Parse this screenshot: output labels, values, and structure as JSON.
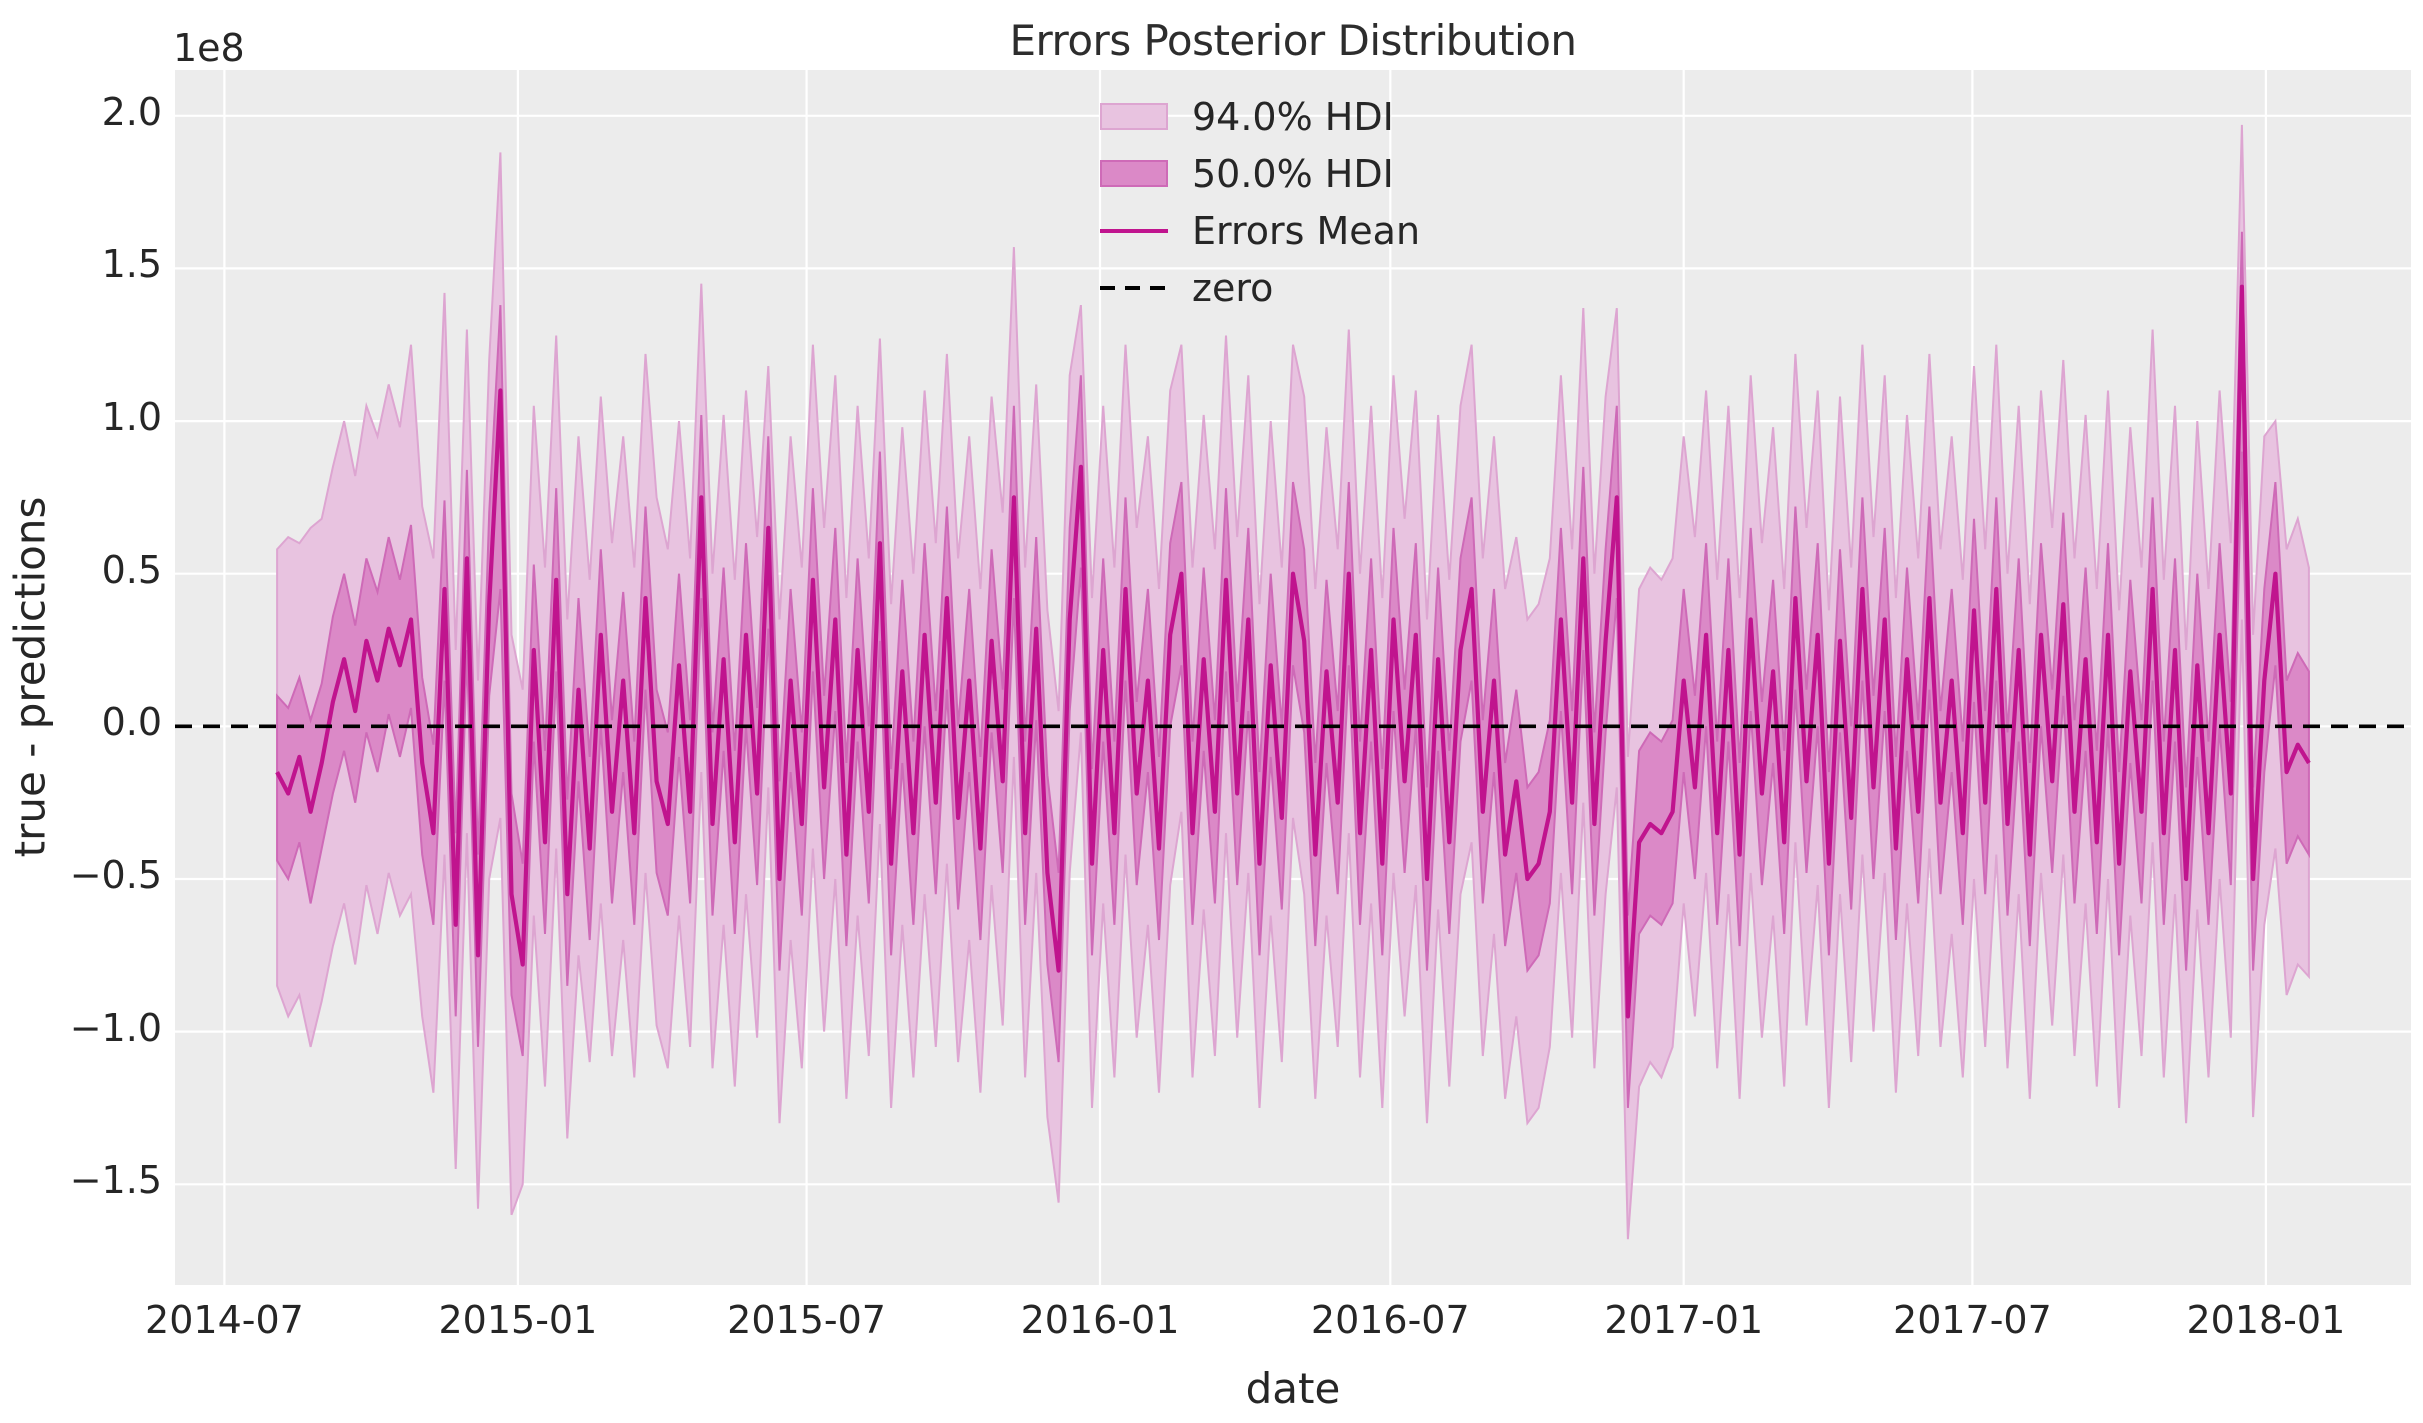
{
  "title": "Errors Posterior Distribution",
  "offset_text": "1e8",
  "xlabel": "date",
  "ylabel": "true - predictions",
  "legend": {
    "hdi94_label": "94.0% HDI",
    "hdi50_label": "50.0% HDI",
    "mean_label": "Errors Mean",
    "zero_label": "zero"
  },
  "colors": {
    "plot_background": "#ECECEC",
    "gridline": "#FFFFFF",
    "hdi94_fill": "#E8C3E0",
    "hdi94_edge": "#DDA5D1",
    "hdi50_fill": "#DB89C7",
    "hdi50_edge": "#CE6AB7",
    "mean_line": "#C0148E",
    "zero_line": "#000000",
    "text": "#262626"
  },
  "chart_data": {
    "type": "line",
    "title": "Errors Posterior Distribution",
    "xlabel": "date",
    "ylabel": "true - predictions",
    "y_scale_factor": "1e8",
    "legend_position": "upper center",
    "grid": true,
    "x_start_date": "2014-08-03",
    "x_freq_days": 7,
    "x_start_day": 64,
    "xlim_dates": [
      "2014-05-31",
      "2018-04-02"
    ],
    "xlim_total_days": 1402,
    "ylim": [
      -1.83,
      2.15
    ],
    "xticks": [
      {
        "label": "2014-07",
        "day": 31
      },
      {
        "label": "2015-01",
        "day": 215
      },
      {
        "label": "2015-07",
        "day": 396
      },
      {
        "label": "2016-01",
        "day": 580
      },
      {
        "label": "2016-07",
        "day": 762
      },
      {
        "label": "2017-01",
        "day": 946
      },
      {
        "label": "2017-07",
        "day": 1127
      },
      {
        "label": "2018-01",
        "day": 1311
      }
    ],
    "yticks": [
      {
        "label": "2.0",
        "value": 2.0
      },
      {
        "label": "1.5",
        "value": 1.5
      },
      {
        "label": "1.0",
        "value": 1.0
      },
      {
        "label": "0.5",
        "value": 0.5
      },
      {
        "label": "0.0",
        "value": 0.0
      },
      {
        "label": "−0.5",
        "value": -0.5
      },
      {
        "label": "−1.0",
        "value": -1.0
      },
      {
        "label": "−1.5",
        "value": -1.5
      }
    ],
    "zero_reference": 0.0,
    "series": {
      "mean": [
        -0.15,
        -0.22,
        -0.1,
        -0.28,
        -0.12,
        0.08,
        0.22,
        0.05,
        0.28,
        0.15,
        0.32,
        0.2,
        0.35,
        -0.12,
        -0.35,
        0.45,
        -0.65,
        0.55,
        -0.75,
        0.4,
        1.1,
        -0.55,
        -0.78,
        0.25,
        -0.38,
        0.48,
        -0.55,
        0.12,
        -0.4,
        0.3,
        -0.28,
        0.15,
        -0.35,
        0.42,
        -0.18,
        -0.32,
        0.2,
        -0.28,
        0.75,
        -0.32,
        0.22,
        -0.38,
        0.3,
        -0.22,
        0.65,
        -0.5,
        0.15,
        -0.32,
        0.48,
        -0.2,
        0.35,
        -0.42,
        0.25,
        -0.28,
        0.6,
        -0.45,
        0.18,
        -0.35,
        0.3,
        -0.25,
        0.42,
        -0.3,
        0.15,
        -0.4,
        0.28,
        -0.18,
        0.75,
        -0.35,
        0.32,
        -0.48,
        -0.8,
        0.35,
        0.85,
        -0.45,
        0.25,
        -0.35,
        0.45,
        -0.22,
        0.15,
        -0.4,
        0.3,
        0.5,
        -0.35,
        0.22,
        -0.28,
        0.48,
        -0.22,
        0.35,
        -0.45,
        0.2,
        -0.3,
        0.5,
        0.28,
        -0.42,
        0.18,
        -0.25,
        0.5,
        -0.35,
        0.25,
        -0.45,
        0.35,
        -0.18,
        0.3,
        -0.5,
        0.22,
        -0.38,
        0.25,
        0.45,
        -0.28,
        0.15,
        -0.42,
        -0.18,
        -0.5,
        -0.45,
        -0.28,
        0.35,
        -0.25,
        0.55,
        -0.32,
        0.28,
        0.75,
        -0.95,
        -0.38,
        -0.32,
        -0.35,
        -0.28,
        0.15,
        -0.2,
        0.3,
        -0.35,
        0.25,
        -0.42,
        0.35,
        -0.22,
        0.18,
        -0.38,
        0.42,
        -0.18,
        0.3,
        -0.45,
        0.28,
        -0.3,
        0.45,
        -0.2,
        0.35,
        -0.4,
        0.22,
        -0.28,
        0.42,
        -0.25,
        0.15,
        -0.35,
        0.38,
        -0.25,
        0.45,
        -0.32,
        0.25,
        -0.42,
        0.3,
        -0.18,
        0.4,
        -0.28,
        0.22,
        -0.38,
        0.3,
        -0.45,
        0.18,
        -0.28,
        0.45,
        -0.35,
        0.25,
        -0.5,
        0.2,
        -0.35,
        0.3,
        -0.22,
        1.44,
        -0.5,
        0.15,
        0.5,
        -0.15,
        -0.06,
        -0.12
      ],
      "hdi50_upper": [
        0.1,
        0.06,
        0.16,
        0.02,
        0.14,
        0.36,
        0.5,
        0.33,
        0.55,
        0.44,
        0.62,
        0.48,
        0.66,
        0.16,
        -0.06,
        0.74,
        -0.35,
        0.84,
        -0.42,
        0.7,
        1.38,
        -0.22,
        -0.45,
        0.53,
        -0.08,
        0.78,
        -0.24,
        0.42,
        -0.1,
        0.58,
        0.02,
        0.44,
        -0.05,
        0.72,
        0.12,
        -0.02,
        0.5,
        0.02,
        1.02,
        -0.02,
        0.52,
        -0.08,
        0.6,
        0.06,
        0.95,
        -0.18,
        0.45,
        -0.02,
        0.78,
        0.1,
        0.65,
        -0.12,
        0.55,
        0.0,
        0.9,
        -0.14,
        0.48,
        -0.05,
        0.6,
        0.05,
        0.72,
        0.0,
        0.45,
        -0.1,
        0.58,
        0.12,
        1.05,
        -0.05,
        0.62,
        -0.16,
        -0.48,
        0.65,
        1.15,
        -0.14,
        0.55,
        -0.05,
        0.75,
        0.08,
        0.45,
        -0.1,
        0.6,
        0.8,
        -0.05,
        0.52,
        0.02,
        0.78,
        0.08,
        0.65,
        -0.15,
        0.5,
        0.0,
        0.8,
        0.58,
        -0.12,
        0.48,
        0.05,
        0.8,
        -0.05,
        0.55,
        -0.14,
        0.65,
        0.12,
        0.6,
        -0.2,
        0.52,
        -0.08,
        0.55,
        0.75,
        0.02,
        0.45,
        -0.12,
        0.12,
        -0.2,
        -0.15,
        0.02,
        0.65,
        0.05,
        0.85,
        -0.02,
        0.58,
        1.05,
        -0.62,
        -0.08,
        -0.02,
        -0.05,
        0.02,
        0.45,
        0.1,
        0.6,
        -0.05,
        0.55,
        -0.12,
        0.65,
        0.08,
        0.48,
        -0.08,
        0.72,
        0.12,
        0.6,
        -0.15,
        0.58,
        0.0,
        0.75,
        0.1,
        0.65,
        -0.1,
        0.52,
        0.02,
        0.72,
        0.05,
        0.45,
        -0.05,
        0.68,
        0.05,
        0.75,
        -0.02,
        0.55,
        -0.12,
        0.6,
        0.12,
        0.7,
        0.02,
        0.52,
        -0.08,
        0.6,
        -0.15,
        0.48,
        0.02,
        0.75,
        -0.05,
        0.55,
        -0.2,
        0.5,
        -0.05,
        0.6,
        0.08,
        1.62,
        -0.2,
        0.45,
        0.8,
        0.15,
        0.24,
        0.18
      ],
      "hdi50_lower": [
        -0.44,
        -0.5,
        -0.38,
        -0.58,
        -0.4,
        -0.22,
        -0.08,
        -0.25,
        -0.02,
        -0.15,
        0.04,
        -0.1,
        0.06,
        -0.42,
        -0.65,
        0.15,
        -0.95,
        0.25,
        -1.05,
        0.1,
        0.45,
        -0.88,
        -1.08,
        -0.05,
        -0.68,
        0.18,
        -0.85,
        -0.18,
        -0.7,
        0.0,
        -0.58,
        -0.15,
        -0.65,
        0.12,
        -0.48,
        -0.62,
        -0.1,
        -0.58,
        0.42,
        -0.62,
        -0.08,
        -0.68,
        0.0,
        -0.52,
        0.32,
        -0.8,
        -0.15,
        -0.62,
        0.18,
        -0.5,
        0.05,
        -0.72,
        -0.05,
        -0.58,
        0.28,
        -0.75,
        -0.12,
        -0.65,
        0.0,
        -0.55,
        0.12,
        -0.6,
        -0.15,
        -0.7,
        -0.02,
        -0.48,
        0.42,
        -0.65,
        0.02,
        -0.78,
        -1.1,
        0.05,
        0.52,
        -0.75,
        -0.05,
        -0.65,
        0.15,
        -0.52,
        -0.15,
        -0.7,
        0.0,
        0.2,
        -0.65,
        -0.08,
        -0.58,
        0.18,
        -0.52,
        0.05,
        -0.75,
        -0.1,
        -0.6,
        0.2,
        -0.02,
        -0.72,
        -0.12,
        -0.55,
        0.2,
        -0.65,
        -0.05,
        -0.75,
        0.05,
        -0.48,
        0.0,
        -0.8,
        -0.08,
        -0.68,
        -0.05,
        0.15,
        -0.58,
        -0.15,
        -0.72,
        -0.48,
        -0.8,
        -0.75,
        -0.58,
        0.05,
        -0.55,
        0.25,
        -0.62,
        -0.02,
        0.42,
        -1.25,
        -0.68,
        -0.62,
        -0.65,
        -0.58,
        -0.15,
        -0.5,
        0.0,
        -0.65,
        -0.05,
        -0.72,
        0.05,
        -0.52,
        -0.12,
        -0.68,
        0.12,
        -0.48,
        0.0,
        -0.75,
        -0.02,
        -0.6,
        0.15,
        -0.5,
        0.05,
        -0.7,
        -0.08,
        -0.58,
        0.12,
        -0.55,
        -0.15,
        -0.65,
        0.08,
        -0.55,
        0.15,
        -0.62,
        -0.05,
        -0.72,
        0.0,
        -0.48,
        0.1,
        -0.58,
        -0.08,
        -0.68,
        0.0,
        -0.75,
        -0.12,
        -0.58,
        0.15,
        -0.65,
        -0.05,
        -0.8,
        -0.1,
        -0.65,
        0.0,
        -0.52,
        0.9,
        -0.8,
        -0.15,
        0.2,
        -0.45,
        -0.36,
        -0.42
      ],
      "hdi94_upper": [
        0.58,
        0.62,
        0.6,
        0.65,
        0.68,
        0.85,
        1.0,
        0.82,
        1.05,
        0.95,
        1.12,
        0.98,
        1.25,
        0.72,
        0.55,
        1.42,
        0.25,
        1.3,
        0.15,
        1.2,
        1.88,
        0.3,
        0.12,
        1.05,
        0.52,
        1.28,
        0.35,
        0.95,
        0.48,
        1.08,
        0.6,
        0.95,
        0.52,
        1.22,
        0.75,
        0.58,
        1.0,
        0.55,
        1.45,
        0.5,
        1.02,
        0.48,
        1.1,
        0.62,
        1.18,
        0.35,
        0.95,
        0.52,
        1.25,
        0.65,
        1.15,
        0.42,
        1.05,
        0.55,
        1.27,
        0.4,
        0.98,
        0.5,
        1.1,
        0.6,
        1.22,
        0.55,
        0.95,
        0.45,
        1.08,
        0.7,
        1.57,
        0.52,
        1.12,
        0.38,
        0.05,
        1.15,
        1.38,
        0.42,
        1.05,
        0.52,
        1.25,
        0.65,
        0.95,
        0.45,
        1.1,
        1.25,
        0.52,
        1.02,
        0.58,
        1.28,
        0.62,
        1.15,
        0.4,
        1.0,
        0.52,
        1.25,
        1.08,
        0.45,
        0.98,
        0.58,
        1.3,
        0.5,
        1.05,
        0.42,
        1.15,
        0.68,
        1.1,
        0.35,
        1.02,
        0.48,
        1.05,
        1.25,
        0.55,
        0.95,
        0.45,
        0.62,
        0.35,
        0.4,
        0.55,
        1.15,
        0.58,
        1.37,
        0.5,
        1.08,
        1.37,
        -0.1,
        0.45,
        0.52,
        0.48,
        0.55,
        0.95,
        0.62,
        1.1,
        0.48,
        1.05,
        0.42,
        1.15,
        0.6,
        0.98,
        0.45,
        1.22,
        0.65,
        1.1,
        0.38,
        1.08,
        0.52,
        1.25,
        0.62,
        1.15,
        0.42,
        1.02,
        0.55,
        1.22,
        0.58,
        0.95,
        0.48,
        1.18,
        0.58,
        1.25,
        0.5,
        1.05,
        0.4,
        1.1,
        0.65,
        1.2,
        0.55,
        1.02,
        0.45,
        1.1,
        0.38,
        0.98,
        0.52,
        1.3,
        0.48,
        1.05,
        0.25,
        1.0,
        0.45,
        1.1,
        0.6,
        1.97,
        0.3,
        0.95,
        1.0,
        0.58,
        0.68,
        0.52
      ],
      "hdi94_lower": [
        -0.85,
        -0.95,
        -0.88,
        -1.05,
        -0.9,
        -0.72,
        -0.58,
        -0.78,
        -0.52,
        -0.68,
        -0.48,
        -0.62,
        -0.55,
        -0.95,
        -1.2,
        -0.42,
        -1.45,
        -0.35,
        -1.58,
        -0.5,
        -0.3,
        -1.6,
        -1.5,
        -0.62,
        -1.18,
        -0.4,
        -1.35,
        -0.75,
        -1.1,
        -0.58,
        -1.08,
        -0.7,
        -1.15,
        -0.48,
        -0.98,
        -1.12,
        -0.62,
        -1.05,
        -0.15,
        -1.12,
        -0.65,
        -1.18,
        -0.55,
        -1.02,
        -0.2,
        -1.3,
        -0.7,
        -1.12,
        -0.4,
        -1.0,
        -0.5,
        -1.22,
        -0.62,
        -1.08,
        -0.32,
        -1.25,
        -0.65,
        -1.15,
        -0.55,
        -1.05,
        -0.45,
        -1.1,
        -0.7,
        -1.2,
        -0.52,
        -0.98,
        -0.1,
        -1.15,
        -0.48,
        -1.28,
        -1.56,
        -0.48,
        -0.02,
        -1.25,
        -0.58,
        -1.15,
        -0.42,
        -1.02,
        -0.65,
        -1.2,
        -0.52,
        -0.28,
        -1.15,
        -0.6,
        -1.08,
        -0.35,
        -1.02,
        -0.48,
        -1.25,
        -0.62,
        -1.1,
        -0.3,
        -0.55,
        -1.22,
        -0.62,
        -1.05,
        -0.35,
        -1.15,
        -0.58,
        -1.25,
        -0.48,
        -0.95,
        -0.52,
        -1.3,
        -0.6,
        -1.18,
        -0.55,
        -0.38,
        -1.08,
        -0.68,
        -1.22,
        -0.95,
        -1.3,
        -1.25,
        -1.05,
        -0.48,
        -1.02,
        -0.25,
        -1.12,
        -0.55,
        -0.2,
        -1.68,
        -1.18,
        -1.1,
        -1.15,
        -1.05,
        -0.58,
        -0.95,
        -0.48,
        -1.12,
        -0.55,
        -1.22,
        -0.48,
        -1.02,
        -0.62,
        -1.18,
        -0.38,
        -0.98,
        -0.52,
        -1.25,
        -0.55,
        -1.1,
        -0.42,
        -1.0,
        -0.48,
        -1.2,
        -0.58,
        -1.08,
        -0.4,
        -1.05,
        -0.68,
        -1.15,
        -0.5,
        -1.05,
        -0.42,
        -1.12,
        -0.55,
        -1.22,
        -0.48,
        -0.98,
        -0.42,
        -1.08,
        -0.58,
        -1.18,
        -0.5,
        -1.25,
        -0.62,
        -1.08,
        -0.38,
        -1.15,
        -0.55,
        -1.3,
        -0.6,
        -1.15,
        -0.5,
        -1.02,
        0.35,
        -1.28,
        -0.65,
        -0.4,
        -0.88,
        -0.78,
        -0.82
      ]
    }
  }
}
